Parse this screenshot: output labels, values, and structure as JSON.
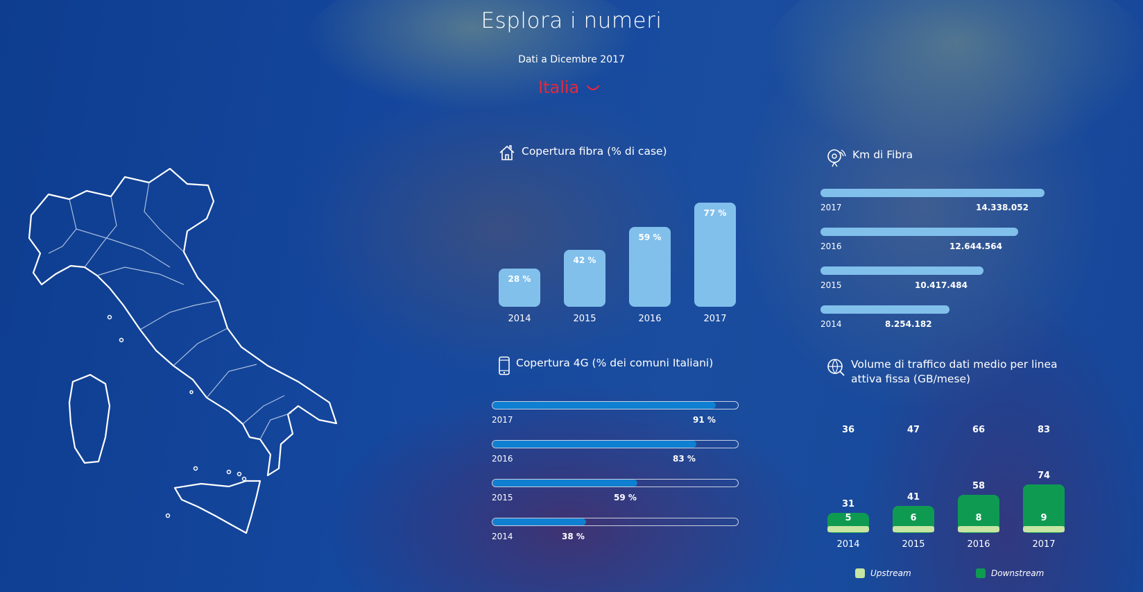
{
  "header": {
    "title": "Esplora i numeri",
    "subtitle": "Dati a Dicembre 2017",
    "region": "Italia"
  },
  "fibra": {
    "title": "Copertura fibra (% di case)",
    "icon": "house-icon",
    "bars": [
      {
        "year": "2014",
        "label": "28 %",
        "value": 28
      },
      {
        "year": "2015",
        "label": "42 %",
        "value": 42
      },
      {
        "year": "2016",
        "label": "59 %",
        "value": 59
      },
      {
        "year": "2017",
        "label": "77 %",
        "value": 77
      }
    ]
  },
  "cov4g": {
    "title": "Copertura 4G (% dei comuni Italiani)",
    "icon": "smartphone-icon",
    "bars": [
      {
        "year": "2017",
        "label": "91 %",
        "value": 91
      },
      {
        "year": "2016",
        "label": "83 %",
        "value": 83
      },
      {
        "year": "2015",
        "label": "59 %",
        "value": 59
      },
      {
        "year": "2014",
        "label": "38 %",
        "value": 38
      }
    ]
  },
  "km": {
    "title": "Km di Fibra",
    "icon": "satellite-dish-icon",
    "bars": [
      {
        "year": "2017",
        "label": "14.338.052",
        "value": 14338052
      },
      {
        "year": "2016",
        "label": "12.644.564",
        "value": 12644564
      },
      {
        "year": "2015",
        "label": "10.417.484",
        "value": 10417484
      },
      {
        "year": "2014",
        "label": "8.254.182",
        "value": 8254182
      }
    ]
  },
  "traffic": {
    "title": "Volume di traffico dati medio per linea attiva fissa (GB/mese)",
    "icon": "globe-icon",
    "groups": [
      {
        "year": "2014",
        "total": "36",
        "down": "31",
        "up": "5",
        "down_value": 31,
        "up_value": 5
      },
      {
        "year": "2015",
        "total": "47",
        "down": "41",
        "up": "6",
        "down_value": 41,
        "up_value": 6
      },
      {
        "year": "2016",
        "total": "66",
        "down": "58",
        "up": "8",
        "down_value": 58,
        "up_value": 8
      },
      {
        "year": "2017",
        "total": "83",
        "down": "74",
        "up": "9",
        "down_value": 74,
        "up_value": 9
      }
    ],
    "legend": {
      "upstream": "Upstream",
      "downstream": "Downstream"
    }
  },
  "colors": {
    "accent_red": "#e8273b",
    "light_blue": "#82c0ec",
    "blue": "#0f7fd1",
    "green": "#0f9a52",
    "light_green": "#c7e5a3"
  }
}
